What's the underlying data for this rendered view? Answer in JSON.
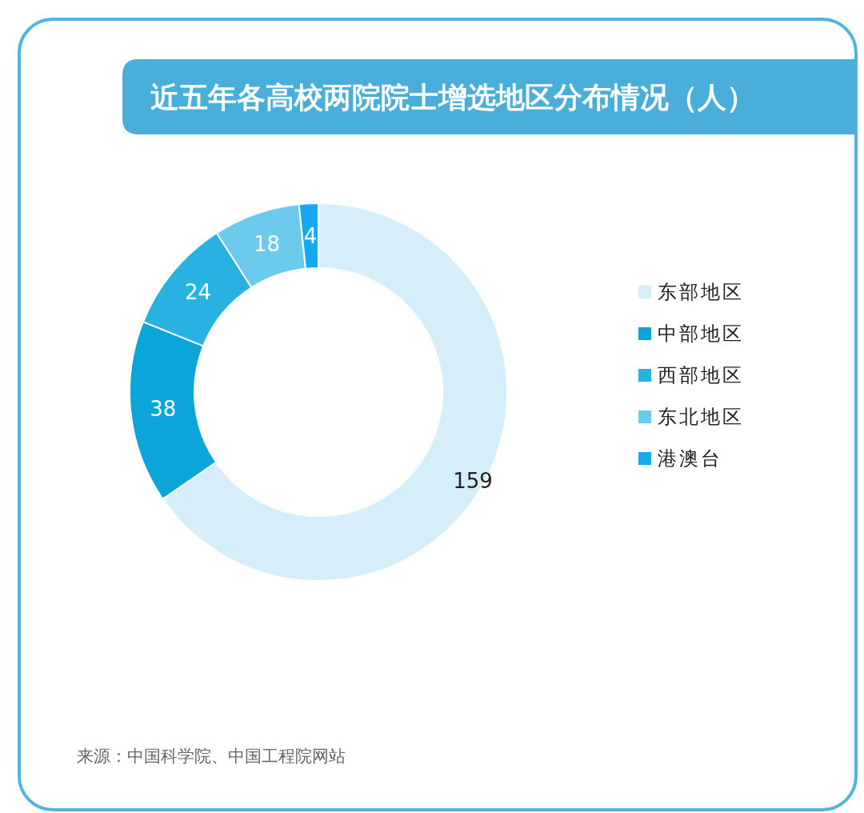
{
  "chart_data": {
    "type": "donut",
    "title": "近五年各高校两院院士增选地区分布情况（人）",
    "categories": [
      "东部地区",
      "中部地区",
      "西部地区",
      "东北地区",
      "港澳台"
    ],
    "values": [
      159,
      38,
      24,
      18,
      4
    ],
    "colors": [
      "#d5eef9",
      "#0ba5d9",
      "#27b2e2",
      "#6ccbec",
      "#16a9ef"
    ],
    "data_labels": true,
    "legend": "right",
    "annotations": [
      "来源：中国科学院、中国工程院网站"
    ]
  }
}
